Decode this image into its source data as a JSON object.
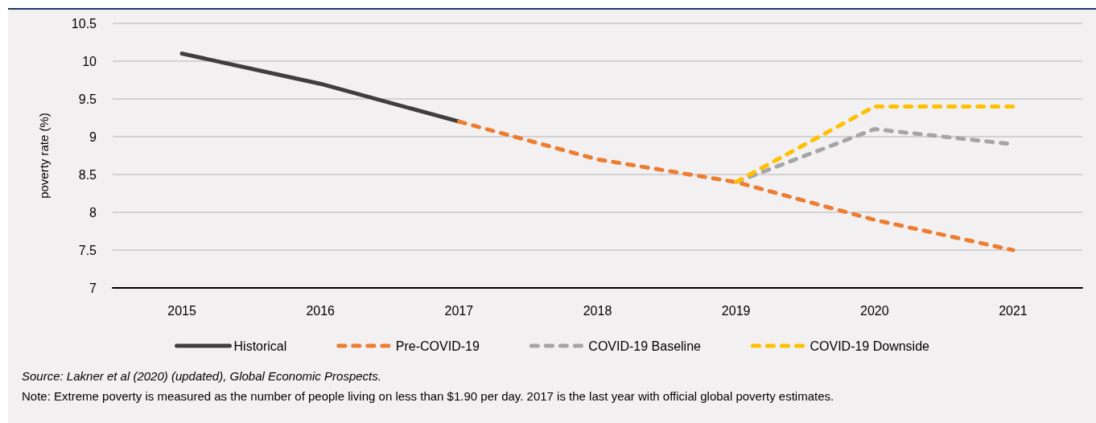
{
  "chart_data": {
    "type": "line",
    "ylabel": "poverty rate (%)",
    "categories": [
      "2015",
      "2016",
      "2017",
      "2018",
      "2019",
      "2020",
      "2021"
    ],
    "series": [
      {
        "name": "Historical",
        "color": "#3f3f3f",
        "line_style": "solid",
        "values": [
          10.1,
          9.7,
          9.2,
          null,
          null,
          null,
          null
        ]
      },
      {
        "name": "Pre-COVID-19",
        "color": "#ed7d31",
        "line_style": "dashed",
        "values": [
          null,
          null,
          9.2,
          8.7,
          8.4,
          7.9,
          7.5
        ]
      },
      {
        "name": "COVID-19 Baseline",
        "color": "#a5a5a5",
        "line_style": "dashed",
        "values": [
          null,
          null,
          null,
          null,
          8.4,
          9.1,
          8.9
        ]
      },
      {
        "name": "COVID-19 Downside",
        "color": "#ffc000",
        "line_style": "dashed",
        "values": [
          null,
          null,
          null,
          null,
          8.4,
          9.4,
          9.4
        ]
      }
    ],
    "ylim": [
      7,
      10.5
    ],
    "yticks": [
      7,
      7.5,
      8,
      8.5,
      9,
      9.5,
      10,
      10.5
    ],
    "grid": "y",
    "legend": "bottom",
    "marker": "none",
    "annotations": [
      "Source: Lakner et al (2020) (updated), Global Economic Prospects.",
      "Note: Extreme poverty is measured as the number of people living on less than $1.90 per day. 2017 is the last year with official global poverty estimates."
    ]
  }
}
